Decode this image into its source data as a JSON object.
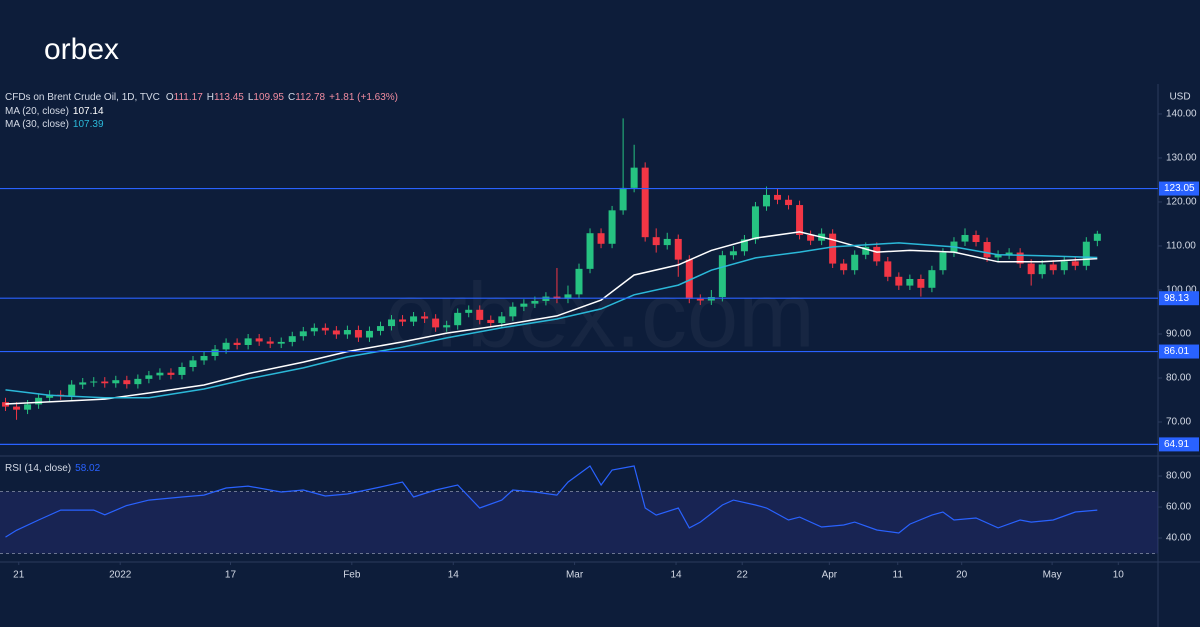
{
  "header": {
    "logo": "orbex",
    "watermark": "orbex.com"
  },
  "chart_data": [
    {
      "type": "candlestick",
      "title": "CFDs on Brent Crude Oil, 1D, TVC",
      "quote": [
        {
          "key": "O",
          "value": "111.17"
        },
        {
          "key": "H",
          "value": "113.45"
        },
        {
          "key": "L",
          "value": "109.95"
        },
        {
          "key": "C",
          "value": "112.78"
        }
      ],
      "change": "+1.81 (+1.63%)",
      "currency": "USD",
      "candles": {
        "up_color": "#26c281",
        "down_color": "#f23645",
        "open": [
          74.5,
          73.5,
          72.8,
          74.0,
          75.5,
          76.2,
          76.0,
          78.5,
          79.0,
          79.2,
          78.8,
          79.5,
          78.6,
          79.8,
          80.6,
          81.2,
          80.7,
          82.5,
          84.0,
          85.0,
          86.5,
          88.0,
          87.5,
          89.0,
          88.3,
          87.8,
          88.2,
          89.5,
          90.6,
          91.4,
          90.8,
          89.9,
          90.9,
          89.2,
          90.7,
          91.8,
          93.3,
          92.8,
          94.0,
          93.5,
          91.5,
          92.0,
          94.8,
          95.5,
          93.2,
          92.5,
          94.0,
          96.2,
          96.9,
          97.5,
          98.5,
          98.0,
          99.0,
          104.8,
          112.9,
          110.5,
          118.1,
          123.2,
          127.8,
          112.0,
          110.2,
          111.6,
          106.9,
          98.0,
          97.6,
          98.4,
          107.9,
          108.8,
          111.5,
          119.0,
          121.6,
          120.5,
          119.3,
          112.5,
          111.2,
          112.8,
          106.0,
          104.5,
          108.0,
          109.8,
          106.5,
          103.0,
          101.0,
          102.5,
          100.5,
          104.5,
          108.5,
          111.0,
          112.5,
          110.9,
          107.4,
          108.0,
          108.5,
          106.0,
          103.6,
          105.8,
          104.5,
          106.5,
          105.5,
          111.17
        ],
        "high": [
          75.5,
          74.5,
          75.0,
          76.5,
          77.2,
          77.2,
          79.5,
          80.0,
          80.2,
          80.2,
          80.5,
          80.5,
          80.8,
          81.6,
          82.2,
          82.2,
          83.5,
          85.0,
          86.0,
          87.5,
          89.0,
          89.0,
          90.0,
          90.0,
          89.3,
          89.2,
          90.5,
          91.6,
          92.4,
          92.4,
          91.8,
          91.9,
          91.9,
          91.7,
          92.8,
          94.3,
          94.3,
          95.0,
          95.0,
          94.5,
          93.0,
          95.8,
          96.5,
          96.5,
          94.2,
          95.0,
          97.2,
          97.9,
          98.5,
          99.5,
          105.0,
          101.0,
          106.0,
          114.0,
          114.0,
          119.1,
          139.0,
          133.0,
          129.0,
          114.0,
          113.0,
          112.6,
          107.9,
          99.0,
          100.0,
          108.9,
          110.0,
          112.5,
          120.0,
          123.5,
          123.0,
          121.5,
          120.3,
          113.5,
          114.0,
          113.8,
          107.0,
          109.0,
          110.8,
          110.8,
          107.5,
          104.0,
          103.5,
          103.5,
          105.5,
          109.5,
          112.0,
          114.0,
          113.5,
          111.9,
          109.0,
          109.5,
          109.5,
          107.0,
          106.8,
          106.8,
          107.5,
          107.5,
          112.0,
          113.45
        ],
        "low": [
          72.5,
          70.5,
          71.8,
          73.0,
          74.5,
          75.0,
          75.0,
          77.5,
          78.0,
          77.8,
          77.8,
          77.6,
          77.6,
          78.8,
          79.6,
          79.7,
          79.7,
          81.5,
          83.0,
          84.0,
          85.5,
          86.5,
          86.5,
          87.3,
          86.8,
          86.8,
          87.2,
          88.5,
          89.6,
          89.8,
          88.9,
          88.9,
          88.2,
          88.2,
          89.7,
          90.8,
          91.8,
          91.8,
          92.5,
          90.5,
          90.5,
          91.0,
          93.8,
          92.2,
          91.5,
          91.5,
          93.0,
          95.2,
          95.9,
          96.5,
          97.0,
          97.0,
          98.0,
          103.8,
          109.5,
          109.5,
          117.1,
          122.2,
          111.0,
          108.5,
          109.2,
          103.0,
          97.0,
          96.6,
          96.6,
          97.4,
          106.9,
          107.8,
          110.5,
          118.0,
          119.5,
          118.3,
          111.5,
          110.2,
          110.2,
          105.0,
          103.5,
          103.5,
          107.0,
          105.5,
          102.0,
          100.0,
          100.0,
          98.5,
          99.5,
          103.5,
          107.5,
          110.0,
          109.9,
          106.4,
          106.4,
          107.0,
          105.0,
          101.0,
          102.6,
          103.5,
          103.5,
          104.5,
          104.5,
          109.95
        ],
        "close": [
          73.5,
          72.8,
          74.0,
          75.5,
          76.2,
          76.0,
          78.5,
          79.0,
          79.2,
          78.8,
          79.5,
          78.6,
          79.8,
          80.6,
          81.2,
          80.7,
          82.5,
          84.0,
          85.0,
          86.5,
          88.0,
          87.5,
          89.0,
          88.3,
          87.8,
          88.2,
          89.5,
          90.6,
          91.4,
          90.8,
          89.9,
          90.9,
          89.2,
          90.7,
          91.8,
          93.3,
          92.8,
          94.0,
          93.5,
          91.5,
          92.0,
          94.8,
          95.5,
          93.2,
          92.5,
          94.0,
          96.2,
          96.9,
          97.5,
          98.5,
          98.0,
          99.0,
          104.8,
          112.9,
          110.5,
          118.1,
          123.2,
          127.8,
          112.0,
          110.2,
          111.6,
          106.9,
          98.0,
          97.6,
          98.4,
          107.9,
          108.8,
          111.5,
          119.0,
          121.6,
          120.5,
          119.3,
          112.5,
          111.2,
          112.8,
          106.0,
          104.5,
          108.0,
          109.8,
          106.5,
          103.0,
          101.0,
          102.5,
          100.5,
          104.5,
          108.5,
          111.0,
          112.5,
          110.9,
          107.4,
          108.0,
          108.5,
          106.0,
          103.6,
          105.8,
          104.5,
          106.5,
          105.5,
          110.97,
          112.78
        ]
      },
      "series": [
        {
          "name": "MA (20, close)",
          "color": "#ffffff",
          "last": 107.14,
          "x": [
            0,
            9,
            13,
            18,
            22,
            27,
            31,
            36,
            40,
            45,
            50,
            54,
            57,
            61,
            64,
            68,
            72,
            75,
            79,
            82,
            86,
            90,
            94,
            99
          ],
          "values": [
            74.1,
            75.2,
            76.6,
            78.4,
            81.0,
            83.6,
            86.0,
            88.2,
            90.2,
            92.0,
            94.1,
            97.7,
            103.4,
            105.7,
            109.0,
            111.8,
            113.2,
            111.4,
            108.6,
            109.0,
            108.6,
            106.4,
            106.4,
            107.14
          ]
        },
        {
          "name": "MA (30, close)",
          "color": "#2bb8d8",
          "last": 107.39,
          "x": [
            0,
            4,
            9,
            13,
            18,
            22,
            27,
            31,
            36,
            40,
            45,
            50,
            54,
            57,
            61,
            64,
            68,
            72,
            75,
            81,
            86,
            90,
            94,
            99
          ],
          "values": [
            77.3,
            76.1,
            75.5,
            75.5,
            77.5,
            79.8,
            82.3,
            84.8,
            87.0,
            89.1,
            91.4,
            93.4,
            95.7,
            98.9,
            101.1,
            104.5,
            107.3,
            108.6,
            109.8,
            110.7,
            109.8,
            108.0,
            107.8,
            107.39
          ]
        }
      ],
      "levels": [
        123.05,
        98.13,
        86.01,
        64.91
      ],
      "level_color": "#2962ff",
      "ylim": [
        62.5,
        145.9
      ],
      "yticks": [
        {
          "value": 70,
          "label": "70.00"
        },
        {
          "value": 80,
          "label": "80.00"
        },
        {
          "value": 90,
          "label": "90.00"
        },
        {
          "value": 100,
          "label": "100.00"
        },
        {
          "value": 110,
          "label": "110.00"
        },
        {
          "value": 120,
          "label": "120.00"
        },
        {
          "value": 130,
          "label": "130.00"
        },
        {
          "value": 140,
          "label": "140.00"
        }
      ],
      "xlim": [
        -0.5,
        104.5
      ],
      "xticks": [
        {
          "value": 1.2,
          "label": "21"
        },
        {
          "value": 10.4,
          "label": "2022"
        },
        {
          "value": 20.4,
          "label": "17"
        },
        {
          "value": 31.4,
          "label": "Feb"
        },
        {
          "value": 40.6,
          "label": "14"
        },
        {
          "value": 51.6,
          "label": "Mar"
        },
        {
          "value": 60.8,
          "label": "14"
        },
        {
          "value": 66.8,
          "label": "22"
        },
        {
          "value": 74.7,
          "label": "Apr"
        },
        {
          "value": 80.9,
          "label": "11"
        },
        {
          "value": 86.7,
          "label": "20"
        },
        {
          "value": 94.9,
          "label": "May"
        },
        {
          "value": 100.9,
          "label": "10"
        }
      ]
    },
    {
      "type": "line",
      "series": [
        {
          "name": "RSI (14, close)",
          "color": "#2962ff",
          "last": 58.02,
          "x": [
            0,
            1,
            3,
            5,
            8,
            9,
            11,
            13,
            16,
            18,
            20,
            22,
            25,
            27,
            29,
            31,
            34,
            36,
            37,
            39,
            41,
            43,
            45,
            46,
            48,
            50,
            51,
            53,
            54,
            55,
            57,
            58,
            59,
            61,
            62,
            63,
            65,
            66,
            68,
            69,
            71,
            72,
            74,
            76,
            77,
            79,
            81,
            82,
            84,
            85,
            86,
            88,
            90,
            92,
            93,
            95,
            97,
            99
          ],
          "values": [
            40.6,
            45.0,
            51.6,
            58.0,
            58.0,
            55.0,
            61.0,
            64.5,
            66.5,
            67.7,
            72.3,
            73.5,
            69.7,
            71.0,
            67.1,
            68.4,
            72.9,
            76.1,
            66.5,
            71.0,
            74.2,
            59.4,
            64.5,
            71.0,
            69.7,
            67.7,
            76.1,
            86.5,
            74.2,
            83.9,
            86.5,
            59.4,
            54.8,
            59.4,
            46.5,
            50.3,
            61.3,
            64.5,
            61.3,
            59.4,
            51.6,
            53.5,
            47.1,
            48.4,
            50.3,
            45.2,
            43.2,
            49.0,
            54.8,
            56.8,
            51.6,
            52.9,
            46.5,
            51.6,
            50.3,
            51.6,
            56.8,
            58.02
          ]
        }
      ],
      "band": [
        30,
        70
      ],
      "ylim": [
        25.8,
        92.3
      ],
      "yticks": [
        {
          "value": 40,
          "label": "40.00"
        },
        {
          "value": 60,
          "label": "60.00"
        },
        {
          "value": 80,
          "label": "80.00"
        }
      ]
    }
  ]
}
